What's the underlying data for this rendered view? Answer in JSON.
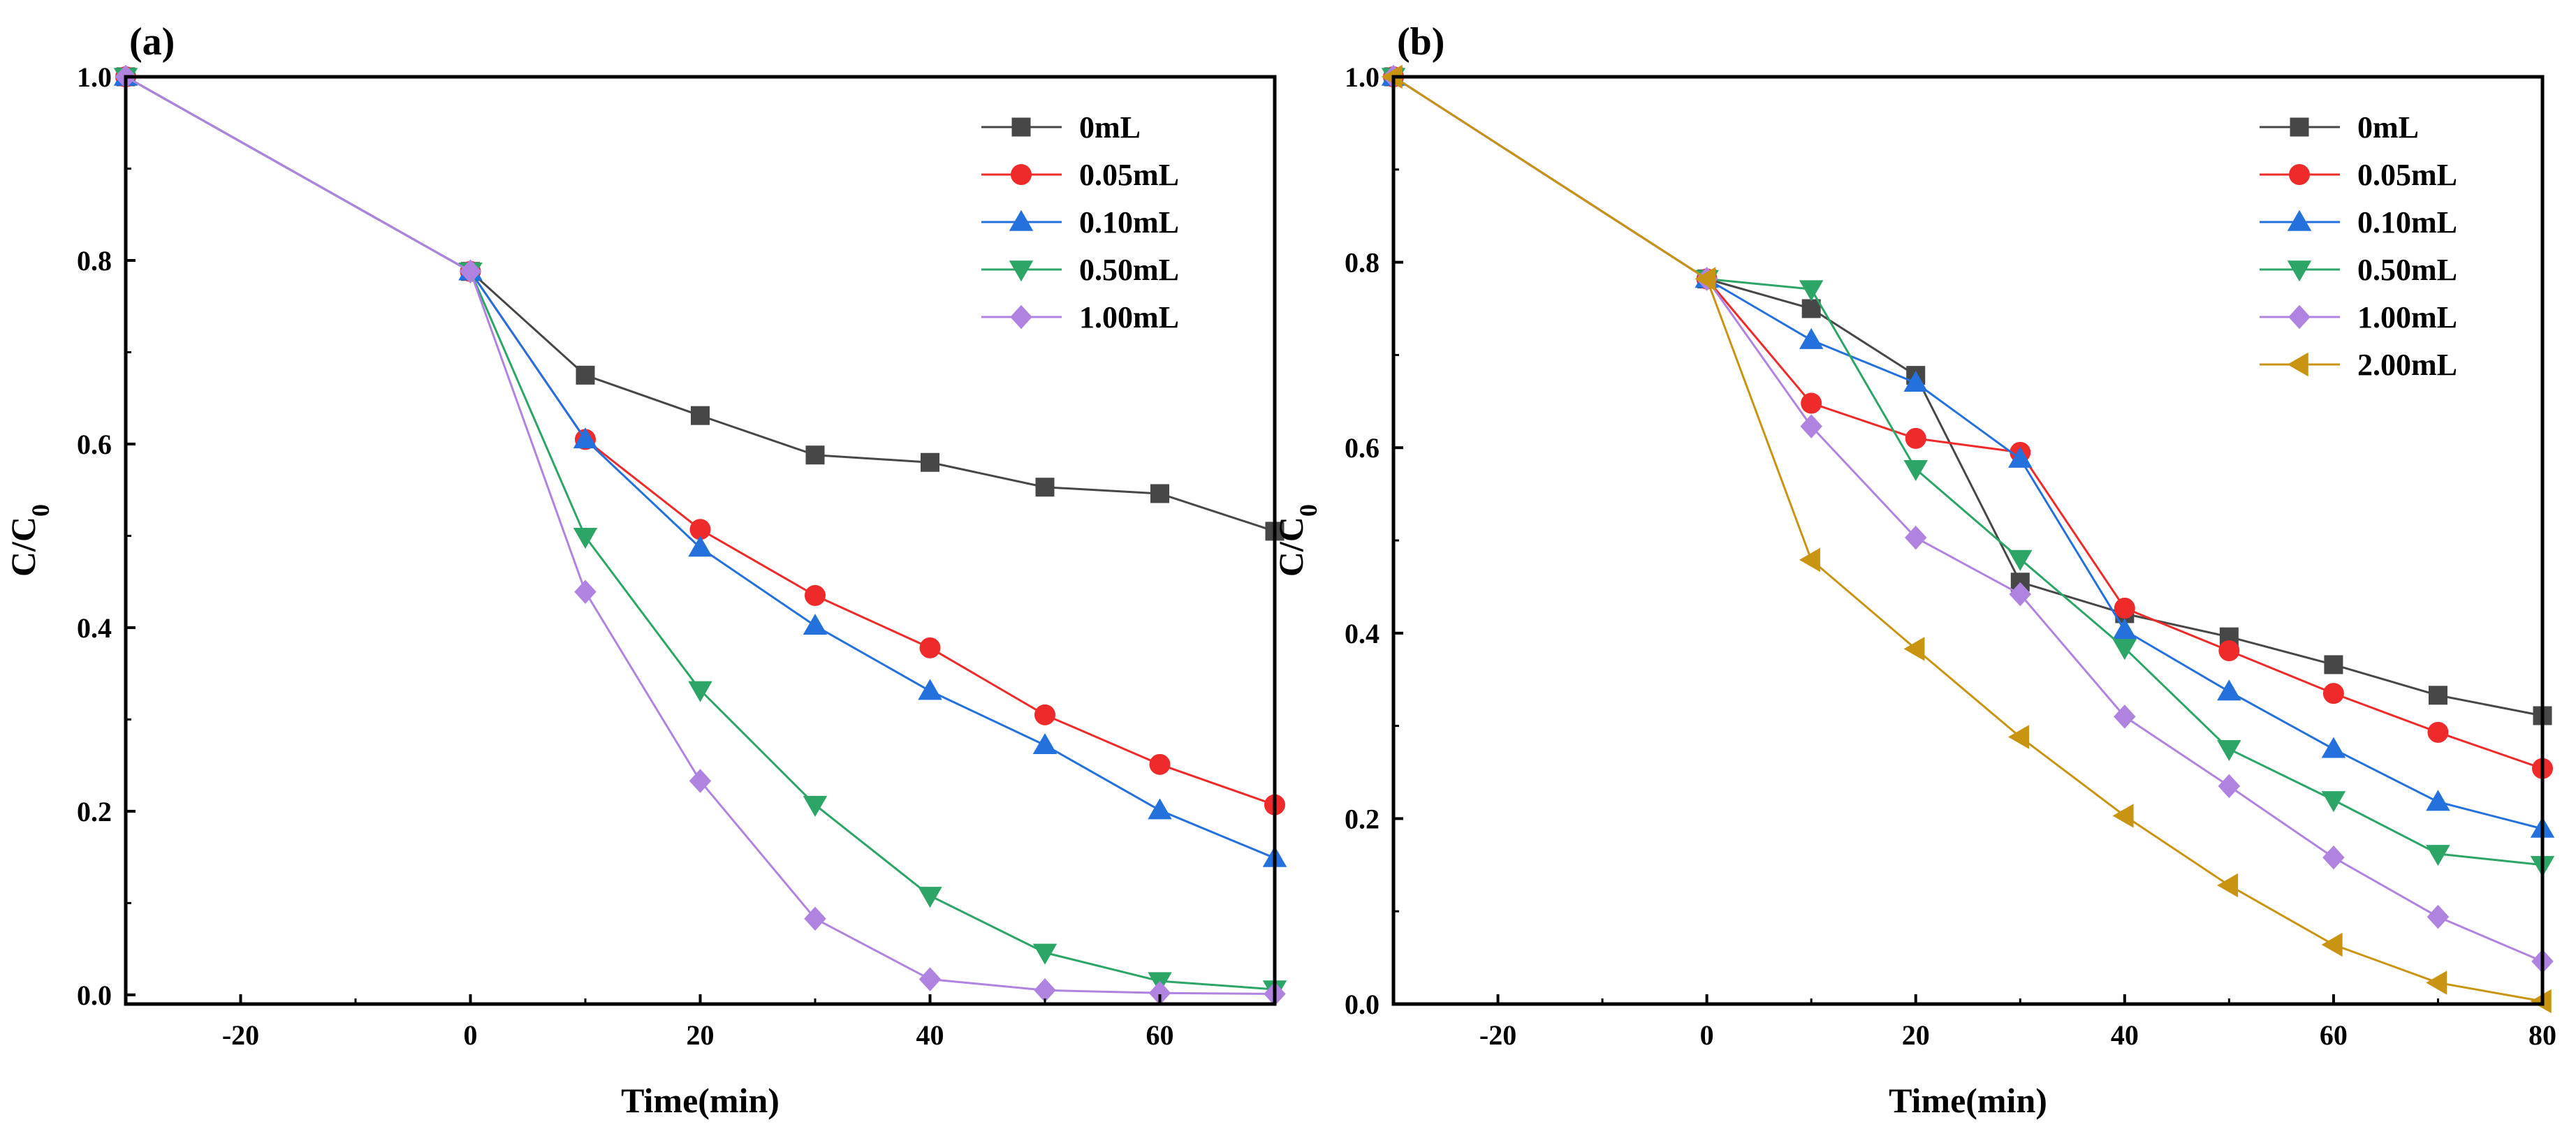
{
  "colors": {
    "0mL": "#474747",
    "0.05mL": "#ee2a2a",
    "0.10mL": "#2470dc",
    "0.50mL": "#2da567",
    "1.00mL": "#b083e0",
    "2.00mL": "#c99412"
  },
  "chart_data": [
    {
      "type": "line",
      "panel_label": "(a)",
      "xlabel": "Time(min)",
      "ylabel": "C/C",
      "ylabel_sub": "0",
      "xlim": [
        -30,
        70
      ],
      "ylim": [
        -0.01,
        1.0
      ],
      "xticks": [
        -20,
        0,
        20,
        40,
        60
      ],
      "xtick_labels": [
        "-20",
        "0",
        "20",
        "40",
        "60"
      ],
      "yticks": [
        0.0,
        0.2,
        0.4,
        0.6,
        0.8,
        1.0
      ],
      "ytick_labels": [
        "0.0",
        "0.2",
        "0.4",
        "0.6",
        "0.8",
        "1.0"
      ],
      "legend": "top-right",
      "series": [
        {
          "name": "0mL",
          "marker": "square",
          "color_key": "0mL",
          "x": [
            -30,
            0,
            10,
            20,
            30,
            40,
            50,
            60,
            70
          ],
          "y": [
            1.0,
            0.788,
            0.675,
            0.631,
            0.588,
            0.58,
            0.553,
            0.546,
            0.505
          ]
        },
        {
          "name": "0.05mL",
          "marker": "circle",
          "color_key": "0.05mL",
          "x": [
            -30,
            0,
            10,
            20,
            30,
            40,
            50,
            60,
            70
          ],
          "y": [
            1.0,
            0.788,
            0.605,
            0.507,
            0.435,
            0.378,
            0.305,
            0.251,
            0.207
          ]
        },
        {
          "name": "0.10mL",
          "marker": "triangle-up",
          "color_key": "0.10mL",
          "x": [
            -30,
            0,
            10,
            20,
            30,
            40,
            50,
            60,
            70
          ],
          "y": [
            1.0,
            0.788,
            0.605,
            0.487,
            0.402,
            0.331,
            0.272,
            0.201,
            0.149
          ]
        },
        {
          "name": "0.50mL",
          "marker": "triangle-down",
          "color_key": "0.50mL",
          "x": [
            -30,
            0,
            10,
            20,
            30,
            40,
            50,
            60,
            70
          ],
          "y": [
            1.0,
            0.788,
            0.499,
            0.332,
            0.207,
            0.108,
            0.046,
            0.015,
            0.006
          ]
        },
        {
          "name": "1.00mL",
          "marker": "diamond",
          "color_key": "1.00mL",
          "x": [
            -30,
            0,
            10,
            20,
            30,
            40,
            50,
            60,
            70
          ],
          "y": [
            1.0,
            0.788,
            0.439,
            0.233,
            0.083,
            0.017,
            0.005,
            0.002,
            0.001
          ]
        }
      ]
    },
    {
      "type": "line",
      "panel_label": "(b)",
      "xlabel": "Time(min)",
      "ylabel": "C/C",
      "ylabel_sub": "0",
      "xlim": [
        -30,
        80
      ],
      "ylim": [
        0.0,
        1.0
      ],
      "xticks": [
        -20,
        0,
        20,
        40,
        60,
        80
      ],
      "xtick_labels": [
        "-20",
        "0",
        "20",
        "40",
        "60",
        "80"
      ],
      "yticks": [
        0.0,
        0.2,
        0.4,
        0.6,
        0.8,
        1.0
      ],
      "ytick_labels": [
        "0.0",
        "0.2",
        "0.4",
        "0.6",
        "0.8",
        "1.0"
      ],
      "legend": "top-right",
      "series": [
        {
          "name": "0mL",
          "marker": "square",
          "color_key": "0mL",
          "x": [
            -30,
            0,
            10,
            20,
            30,
            40,
            50,
            60,
            70,
            80
          ],
          "y": [
            1.0,
            0.782,
            0.75,
            0.678,
            0.455,
            0.421,
            0.396,
            0.366,
            0.333,
            0.311
          ]
        },
        {
          "name": "0.05mL",
          "marker": "circle",
          "color_key": "0.05mL",
          "x": [
            -30,
            0,
            10,
            20,
            30,
            40,
            50,
            60,
            70,
            80
          ],
          "y": [
            1.0,
            0.782,
            0.648,
            0.61,
            0.595,
            0.427,
            0.381,
            0.335,
            0.293,
            0.254
          ]
        },
        {
          "name": "0.10mL",
          "marker": "triangle-up",
          "color_key": "0.10mL",
          "x": [
            -30,
            0,
            10,
            20,
            30,
            40,
            50,
            60,
            70,
            80
          ],
          "y": [
            1.0,
            0.782,
            0.716,
            0.67,
            0.588,
            0.403,
            0.337,
            0.275,
            0.218,
            0.189
          ]
        },
        {
          "name": "0.50mL",
          "marker": "triangle-down",
          "color_key": "0.50mL",
          "x": [
            -30,
            0,
            10,
            20,
            30,
            40,
            50,
            60,
            70,
            80
          ],
          "y": [
            1.0,
            0.782,
            0.771,
            0.577,
            0.48,
            0.384,
            0.275,
            0.22,
            0.162,
            0.15
          ]
        },
        {
          "name": "1.00mL",
          "marker": "diamond",
          "color_key": "1.00mL",
          "x": [
            -30,
            0,
            10,
            20,
            30,
            40,
            50,
            60,
            70,
            80
          ],
          "y": [
            1.0,
            0.782,
            0.623,
            0.503,
            0.442,
            0.31,
            0.235,
            0.158,
            0.094,
            0.046
          ]
        },
        {
          "name": "2.00mL",
          "marker": "triangle-left",
          "color_key": "2.00mL",
          "x": [
            -30,
            0,
            10,
            20,
            30,
            40,
            50,
            60,
            70,
            80
          ],
          "y": [
            1.0,
            0.782,
            0.479,
            0.383,
            0.288,
            0.203,
            0.128,
            0.064,
            0.023,
            0.003
          ]
        }
      ]
    }
  ]
}
